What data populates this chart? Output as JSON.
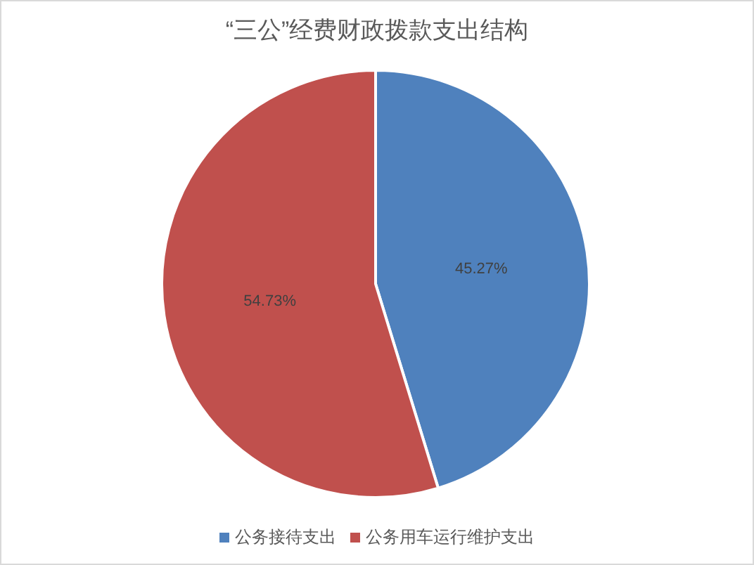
{
  "chart_data": {
    "type": "pie",
    "title": "“三公”经费财政拨款支出结构",
    "categories": [
      "公务接待支出",
      "公务用车运行维护支出"
    ],
    "values": [
      45.27,
      54.73
    ],
    "colors": [
      "#4f81bd",
      "#c0504d"
    ],
    "value_labels": [
      "45.27%",
      "54.73%"
    ],
    "legend": "bottom"
  }
}
